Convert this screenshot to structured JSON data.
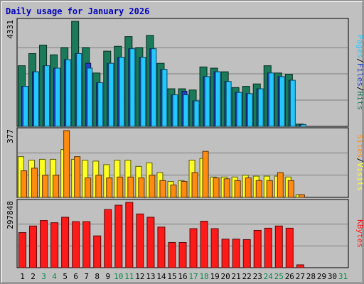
{
  "chart_data": {
    "type": "bar",
    "title": "Daily usage for January 2026",
    "categories": [
      "1",
      "2",
      "3",
      "4",
      "5",
      "6",
      "7",
      "8",
      "9",
      "10",
      "11",
      "12",
      "13",
      "14",
      "15",
      "16",
      "17",
      "18",
      "19",
      "20",
      "21",
      "22",
      "23",
      "24",
      "25",
      "26",
      "27",
      "28",
      "29",
      "30",
      "31"
    ],
    "weekend_days": [
      "3",
      "4",
      "10",
      "11",
      "17",
      "18",
      "24",
      "25",
      "31"
    ],
    "panels": [
      {
        "id": "hits",
        "max_label": "4331",
        "max": 4331,
        "series": [
          {
            "name": "Hits",
            "color": "#1b7a5a",
            "values": [
              2500,
              3000,
              3350,
              2950,
              3250,
              4331,
              3250,
              2200,
              3100,
              3300,
              3700,
              3250,
              3750,
              2600,
              1550,
              1550,
              1500,
              2450,
              2400,
              2250,
              1600,
              1650,
              1750,
              2500,
              2200,
              2150,
              95,
              0,
              0,
              0,
              0
            ]
          },
          {
            "name": "Files",
            "color": "#1f42c8",
            "values": [
              1650,
              2250,
              2500,
              2400,
              2750,
              3000,
              2600,
              1800,
              2600,
              2850,
              3200,
              2850,
              3200,
              2350,
              1300,
              1450,
              1050,
              2050,
              2250,
              1850,
              1400,
              1350,
              1550,
              2200,
              2050,
              1900,
              75,
              0,
              0,
              0,
              0
            ]
          },
          {
            "name": "Pages",
            "color": "#22c8ff",
            "values": [
              1650,
              2250,
              2500,
              2400,
              2750,
              3000,
              2400,
              1800,
              2600,
              2850,
              3200,
              2850,
              3200,
              2350,
              1300,
              1300,
              1050,
              2050,
              2250,
              1850,
              1400,
              1350,
              1550,
              2200,
              2050,
              1900,
              75,
              0,
              0,
              0,
              0
            ]
          }
        ],
        "label_parts": [
          {
            "text": "Pages",
            "color": "#22c8ff"
          },
          {
            "text": "/",
            "color": "#000000"
          },
          {
            "text": "Files",
            "color": "#1f42c8"
          },
          {
            "text": "/",
            "color": "#000000"
          },
          {
            "text": "Hits",
            "color": "#1b7a5a"
          }
        ]
      },
      {
        "id": "visits",
        "max_label": "377",
        "max": 377,
        "series": [
          {
            "name": "Visits",
            "color": "#ffff22",
            "values": [
              230,
              210,
              215,
              215,
              270,
              215,
              210,
              205,
              185,
              210,
              210,
              175,
              195,
              140,
              90,
              95,
              210,
              220,
              115,
              115,
              115,
              125,
              120,
              120,
              120,
              115,
              15,
              0,
              0,
              0,
              0
            ]
          },
          {
            "name": "Sites",
            "color": "#ff8c11",
            "values": [
              150,
              165,
              125,
              125,
              377,
              230,
              110,
              125,
              110,
              115,
              115,
              110,
              125,
              95,
              70,
              90,
              140,
              260,
              110,
              105,
              95,
              110,
              95,
              95,
              140,
              95,
              15,
              0,
              0,
              0,
              0
            ]
          }
        ],
        "label_parts": [
          {
            "text": "Sites",
            "color": "#ff8c11"
          },
          {
            "text": "/",
            "color": "#000000"
          },
          {
            "text": "Visits",
            "color": "#ffff22"
          }
        ]
      },
      {
        "id": "kbytes",
        "max_label": "297848",
        "max": 297848,
        "series": [
          {
            "name": "KBytes",
            "color": "#ff1a1a",
            "values": [
              160000,
              190000,
              215000,
              205000,
              230000,
              210000,
              210000,
              145000,
              265000,
              285000,
              297848,
              245000,
              230000,
              185000,
              115000,
              115000,
              178000,
              212000,
              178000,
              130000,
              130000,
              128000,
              170000,
              180000,
              190000,
              180000,
              13000,
              0,
              0,
              0,
              0
            ]
          }
        ],
        "label_parts": [
          {
            "text": "KBytes",
            "color": "#ff1a1a"
          }
        ]
      }
    ],
    "grid": true
  }
}
